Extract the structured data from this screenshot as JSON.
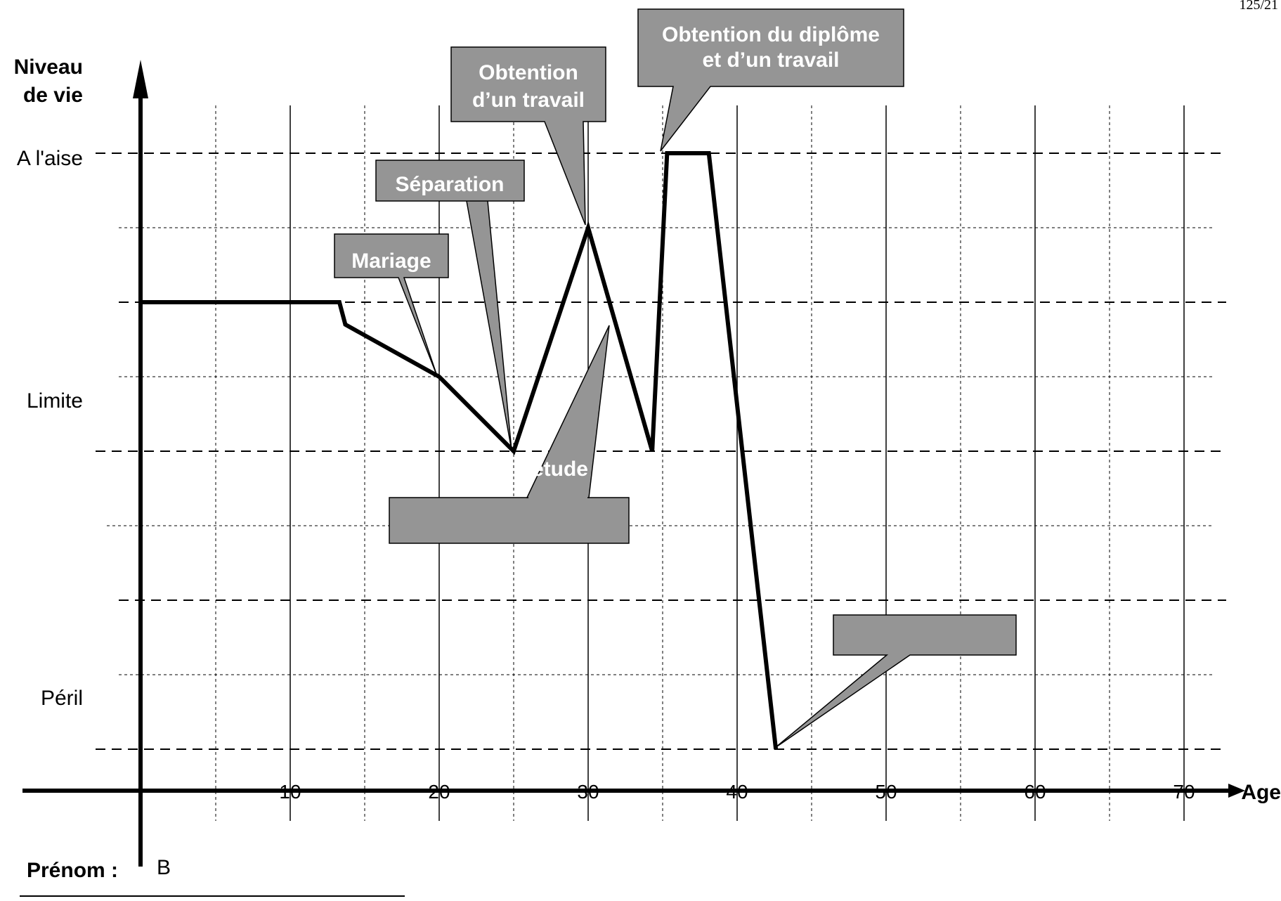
{
  "page_number": "125/21",
  "footer": {
    "prenom_label": "Prénom :",
    "prenom_value": "B"
  },
  "colors": {
    "callout_fill": "#959595",
    "line": "#000000",
    "background": "#ffffff"
  },
  "chart_data": {
    "type": "line",
    "title": "",
    "xlabel": "Age",
    "ylabel": "Niveau de vie",
    "xlim": [
      0,
      73
    ],
    "x_ticks": [
      10,
      20,
      30,
      40,
      50,
      60,
      70
    ],
    "x_tick_labels": [
      "10",
      "20",
      "30",
      "40",
      "50",
      "60",
      "70"
    ],
    "y_levels": [
      {
        "label": "A l'aise",
        "value": 8
      },
      {
        "label": "",
        "value": 6
      },
      {
        "label": "Limite",
        "value": 4
      },
      {
        "label": "",
        "value": 2
      },
      {
        "label": "Péril",
        "value": 0
      }
    ],
    "grid": true,
    "series": [
      {
        "x": [
          0,
          13.3,
          13.7,
          20,
          25,
          30,
          34.3,
          35.3,
          38.1,
          42.6
        ],
        "y": [
          6,
          6,
          5.7,
          5,
          4,
          7,
          4,
          8,
          8,
          0
        ]
      }
    ],
    "annotations": [
      {
        "text": "Mariage",
        "x": 20,
        "y": 5
      },
      {
        "text": "Séparation",
        "x": 25,
        "y": 4
      },
      {
        "text": "Obtention d’un travail",
        "x": 30,
        "y": 7
      },
      {
        "text": "Obtention du diplôme et d’un travail",
        "x": 35.3,
        "y": 8
      },
      {
        "text": "étude",
        "x": 31.7,
        "y": 5.6
      },
      {
        "text": "",
        "x": 42.6,
        "y": 0
      }
    ]
  }
}
